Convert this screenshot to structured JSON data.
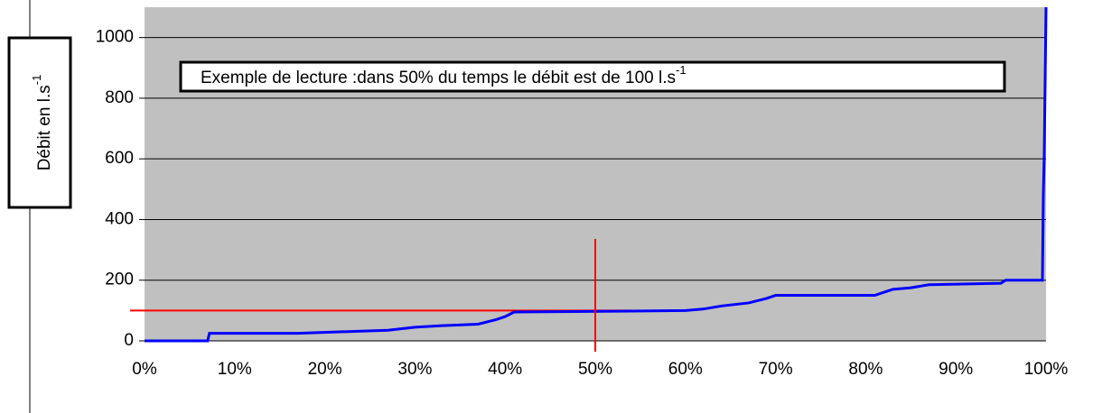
{
  "chart_data": {
    "type": "line",
    "y_label": "Débit en  l.s",
    "y_label_sup": "-1",
    "annotation": "Exemple de lecture :dans 50% du temps le débit est de 100 l.s",
    "annotation_sup": "-1",
    "xlim": [
      0,
      100
    ],
    "ylim": [
      0,
      1100
    ],
    "xticks": [
      {
        "value": 0,
        "label": "0%"
      },
      {
        "value": 10,
        "label": "10%"
      },
      {
        "value": 20,
        "label": "20%"
      },
      {
        "value": 30,
        "label": "30%"
      },
      {
        "value": 40,
        "label": "40%"
      },
      {
        "value": 50,
        "label": "50%"
      },
      {
        "value": 60,
        "label": "60%"
      },
      {
        "value": 70,
        "label": "70%"
      },
      {
        "value": 80,
        "label": "80%"
      },
      {
        "value": 90,
        "label": "90%"
      },
      {
        "value": 100,
        "label": "100%"
      }
    ],
    "yticks": [
      0,
      200,
      400,
      600,
      800,
      1000
    ],
    "grid": true,
    "background": "#c0c0c0",
    "reference": {
      "x": 50,
      "y": 100,
      "color": "#ff0000"
    },
    "series": [
      {
        "color": "#0000ff",
        "x": [
          0,
          7,
          7.2,
          17,
          22,
          27,
          30,
          33,
          37,
          39,
          40,
          41,
          54,
          60,
          62,
          64,
          67,
          69,
          70,
          81,
          82,
          83,
          85,
          86,
          87,
          95,
          95.5,
          99.6,
          99.7,
          99.8,
          100
        ],
        "values": [
          0,
          0,
          25,
          25,
          30,
          35,
          45,
          50,
          55,
          70,
          80,
          95,
          98,
          100,
          105,
          115,
          125,
          140,
          150,
          150,
          160,
          170,
          175,
          180,
          185,
          190,
          200,
          200,
          480,
          610,
          1100
        ]
      }
    ]
  }
}
